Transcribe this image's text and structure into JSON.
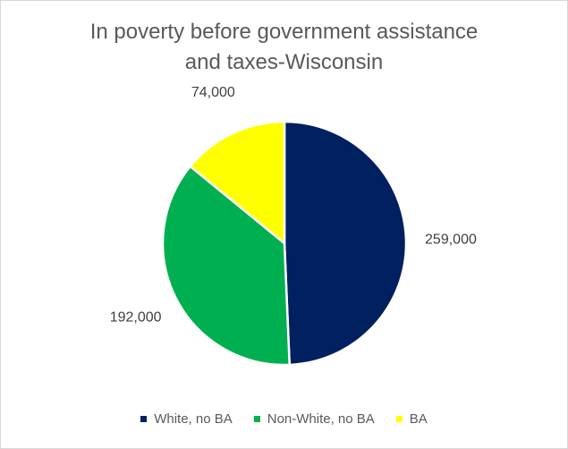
{
  "chart_data": {
    "type": "pie",
    "title_lines": [
      "In poverty before government assistance",
      "and taxes-Wisconsin"
    ],
    "categories": [
      "White, no BA",
      "Non-White, no BA",
      "BA"
    ],
    "values": [
      259000,
      192000,
      74000
    ],
    "data_labels": [
      "259,000",
      "192,000",
      "74,000"
    ],
    "colors": [
      "#002060",
      "#00B050",
      "#FFFF00"
    ],
    "start_angle_deg": 0,
    "direction": "clockwise",
    "legend_position": "bottom"
  }
}
